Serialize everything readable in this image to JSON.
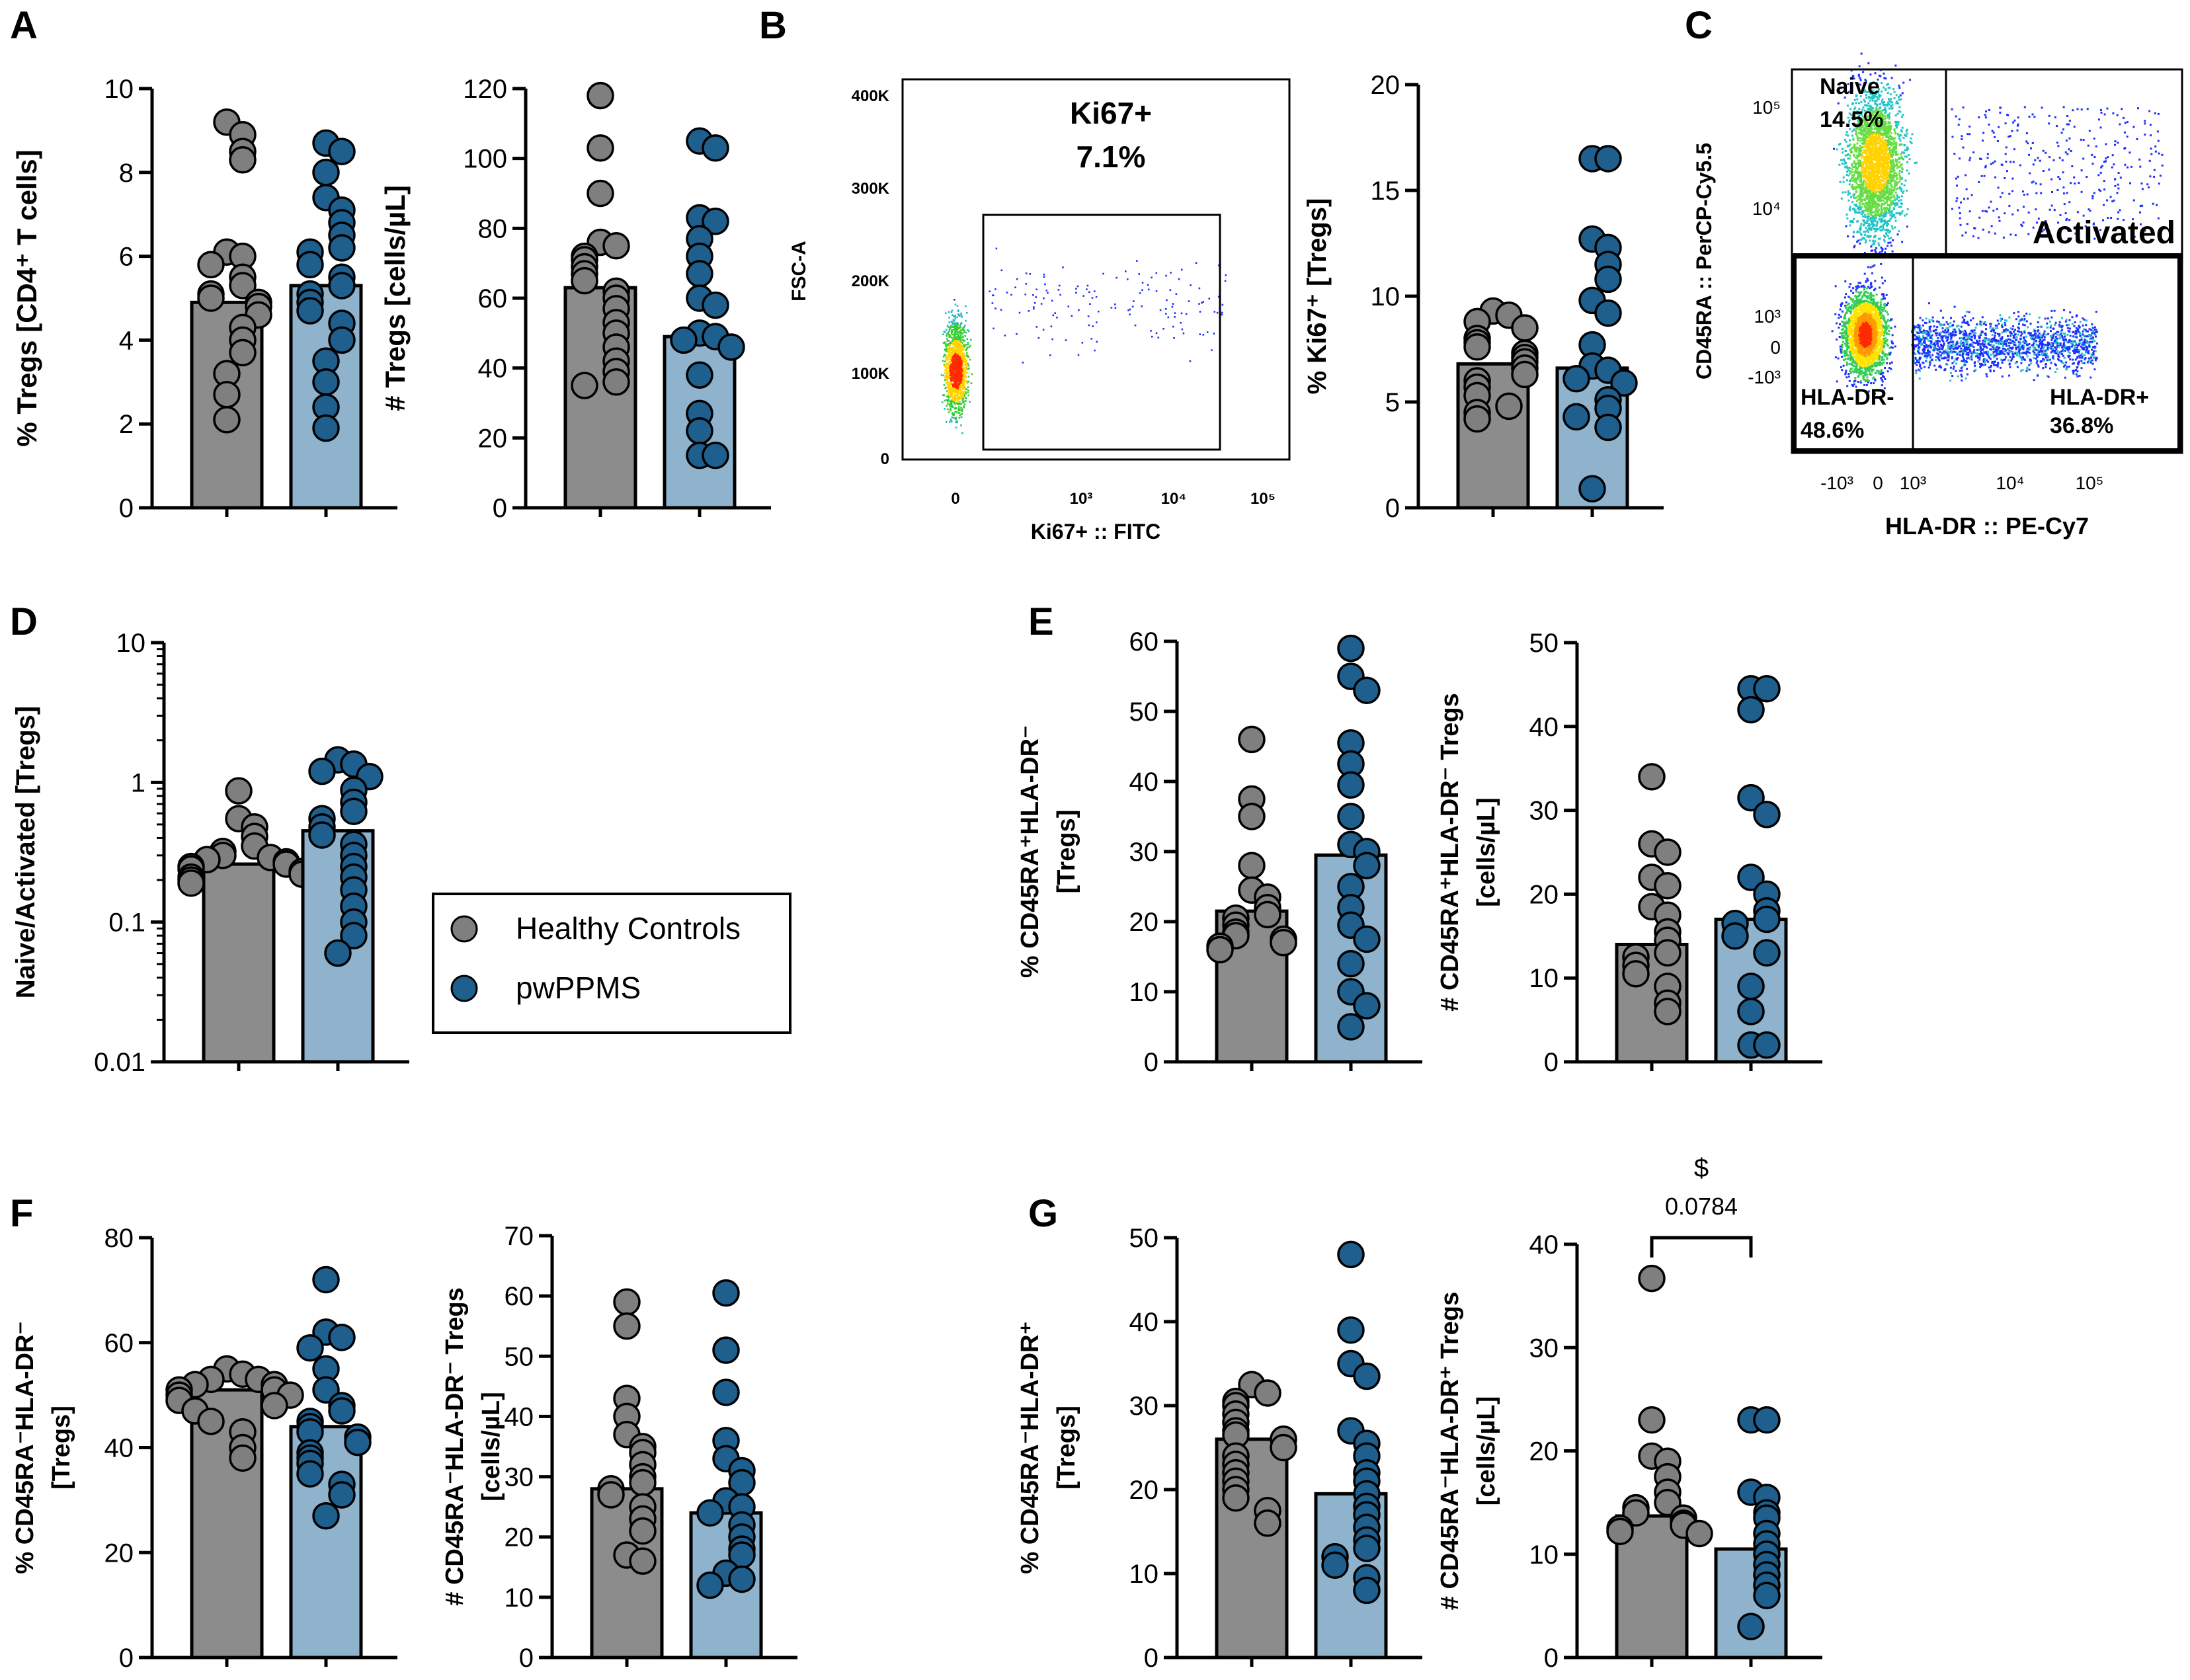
{
  "colors": {
    "hc_bar": "#8c8c8c",
    "ms_bar": "#8fb3cc",
    "hc_dot": "#7f7f7f",
    "ms_dot": "#1e5f8e",
    "stroke": "#000000",
    "gate": "#000000"
  },
  "legend": {
    "items": [
      {
        "label": "Healthy Controls",
        "color": "#7f7f7f"
      },
      {
        "label": "pwPPMS",
        "color": "#1e5f8e"
      }
    ]
  },
  "panel_letters": [
    "A",
    "B",
    "C",
    "D",
    "E",
    "F",
    "G"
  ],
  "chart_data": [
    {
      "id": "A1",
      "panel": "A",
      "type": "bar",
      "ylabel": "% Tregs [CD4⁺ T cells]",
      "ylim": [
        0,
        10
      ],
      "ticks": [
        0,
        2,
        4,
        6,
        8,
        10
      ],
      "series": [
        {
          "name": "Healthy Controls",
          "mean": 4.9,
          "points": [
            9.2,
            8.9,
            8.5,
            8.3,
            6.1,
            6.0,
            5.8,
            5.5,
            5.3,
            5.1,
            5.0,
            4.9,
            4.8,
            4.6,
            4.3,
            4.0,
            3.7,
            3.2,
            2.7,
            2.1
          ]
        },
        {
          "name": "pwPPMS",
          "mean": 5.3,
          "points": [
            8.7,
            8.5,
            8.0,
            7.4,
            7.1,
            6.8,
            6.5,
            6.2,
            6.1,
            5.8,
            5.5,
            5.3,
            5.1,
            4.9,
            4.7,
            4.4,
            4.0,
            3.5,
            3.0,
            2.4,
            1.9
          ]
        }
      ]
    },
    {
      "id": "A2",
      "panel": "A",
      "type": "bar",
      "ylabel": "# Tregs [cells/µL]",
      "ylim": [
        0,
        120
      ],
      "ticks": [
        0,
        20,
        40,
        60,
        80,
        100,
        120
      ],
      "series": [
        {
          "name": "Healthy Controls",
          "mean": 63,
          "points": [
            118,
            103,
            90,
            76,
            75,
            72,
            71,
            69,
            67,
            65,
            62,
            60,
            57,
            53,
            50,
            46,
            42,
            39,
            36,
            35
          ]
        },
        {
          "name": "pwPPMS",
          "mean": 49,
          "points": [
            105,
            103,
            83,
            82,
            77,
            72,
            67,
            60,
            58,
            50,
            49,
            48,
            46,
            38,
            27,
            22,
            15,
            15
          ]
        }
      ]
    },
    {
      "id": "B2",
      "panel": "B",
      "type": "bar",
      "ylabel": "% Ki67⁺ [Tregs]",
      "ylim": [
        0,
        20
      ],
      "ticks": [
        0,
        5,
        10,
        15,
        20
      ],
      "series": [
        {
          "name": "Healthy Controls",
          "mean": 6.8,
          "points": [
            9.3,
            9.1,
            8.8,
            8.5,
            8.0,
            7.8,
            7.6,
            7.3,
            7.1,
            6.9,
            6.6,
            6.3,
            6.0,
            5.7,
            5.3,
            4.8,
            4.5,
            4.2
          ]
        },
        {
          "name": "pwPPMS",
          "mean": 6.6,
          "points": [
            16.5,
            16.5,
            12.7,
            12.3,
            11.5,
            10.8,
            9.8,
            9.2,
            7.7,
            6.7,
            6.5,
            6.1,
            5.9,
            5.1,
            4.7,
            4.3,
            3.8,
            0.9
          ]
        }
      ]
    },
    {
      "id": "D",
      "panel": "D",
      "type": "bar",
      "yscale": "log",
      "ylabel": "Naive/Activated [Tregs]",
      "ylim": [
        0.01,
        10
      ],
      "ticks": [
        0.01,
        0.1,
        1,
        10
      ],
      "tick_labels": [
        "0.01",
        "0.1",
        "1",
        "10"
      ],
      "series": [
        {
          "name": "Healthy Controls",
          "mean": 0.26,
          "points": [
            0.87,
            0.55,
            0.48,
            0.41,
            0.35,
            0.32,
            0.3,
            0.29,
            0.28,
            0.27,
            0.26,
            0.25,
            0.24,
            0.23,
            0.22,
            0.21,
            0.2,
            0.19
          ]
        },
        {
          "name": "pwPPMS",
          "mean": 0.45,
          "points": [
            1.45,
            1.35,
            1.2,
            1.1,
            0.88,
            0.72,
            0.62,
            0.55,
            0.48,
            0.42,
            0.36,
            0.3,
            0.25,
            0.21,
            0.17,
            0.13,
            0.1,
            0.08,
            0.06
          ]
        }
      ]
    },
    {
      "id": "E1",
      "panel": "E",
      "type": "bar",
      "ylabel": "% CD45RA⁺HLA-DR⁻",
      "ylabel2": "[Tregs]",
      "ylim": [
        0,
        60
      ],
      "ticks": [
        0,
        10,
        20,
        30,
        40,
        50,
        60
      ],
      "series": [
        {
          "name": "Healthy Controls",
          "mean": 21.5,
          "points": [
            46,
            37.5,
            35,
            28,
            24.5,
            23.5,
            22,
            21,
            20.5,
            19.5,
            18.5,
            18,
            17.5,
            17,
            16.5,
            16
          ]
        },
        {
          "name": "pwPPMS",
          "mean": 29.5,
          "points": [
            59,
            55,
            53,
            45.5,
            42.5,
            39.5,
            35,
            31,
            30,
            28,
            25,
            22,
            19.5,
            17.5,
            14,
            10,
            8,
            5
          ]
        }
      ]
    },
    {
      "id": "E2",
      "panel": "E",
      "type": "bar",
      "ylabel": "# CD45RA⁺HLA-DR⁻ Tregs",
      "ylabel2": "[cells/µL]",
      "ylim": [
        0,
        50
      ],
      "ticks": [
        0,
        10,
        20,
        30,
        40,
        50
      ],
      "series": [
        {
          "name": "Healthy Controls",
          "mean": 14,
          "points": [
            34,
            26,
            25,
            22,
            21,
            18.5,
            17.5,
            15.5,
            14.5,
            13,
            12.5,
            11.5,
            10.5,
            9,
            7,
            6
          ]
        },
        {
          "name": "pwPPMS",
          "mean": 17,
          "points": [
            44.5,
            44.5,
            42,
            31.5,
            29.5,
            22,
            20,
            18,
            17,
            16.5,
            15,
            13,
            9,
            6,
            2,
            2
          ]
        }
      ]
    },
    {
      "id": "F1",
      "panel": "F",
      "type": "bar",
      "ylabel": "% CD45RA⁻HLA-DR⁻",
      "ylabel2": "[Tregs]",
      "ylim": [
        0,
        80
      ],
      "ticks": [
        0,
        20,
        40,
        60,
        80
      ],
      "series": [
        {
          "name": "Healthy Controls",
          "mean": 51,
          "points": [
            55,
            54,
            53,
            53,
            52,
            52,
            51,
            51,
            50,
            50,
            49,
            48,
            47,
            45,
            43,
            40,
            38
          ]
        },
        {
          "name": "pwPPMS",
          "mean": 44,
          "points": [
            72,
            62,
            61,
            59,
            55,
            51,
            48,
            47,
            45,
            44,
            43,
            42,
            41,
            39,
            38,
            37,
            35,
            33,
            31,
            27
          ]
        }
      ]
    },
    {
      "id": "F2",
      "panel": "F",
      "type": "bar",
      "ylabel": "# CD45RA⁻HLA-DR⁻ Tregs",
      "ylabel2": "[cells/µL]",
      "ylim": [
        0,
        70
      ],
      "ticks": [
        0,
        10,
        20,
        30,
        40,
        50,
        60,
        70
      ],
      "series": [
        {
          "name": "Healthy Controls",
          "mean": 28,
          "points": [
            59,
            55,
            43,
            40,
            37,
            35,
            34,
            32,
            30,
            29,
            28,
            27,
            25,
            23,
            21,
            17,
            16
          ]
        },
        {
          "name": "pwPPMS",
          "mean": 24,
          "points": [
            60.5,
            51,
            44,
            36,
            33,
            31,
            29,
            26,
            25,
            24,
            22,
            20,
            18,
            17,
            14,
            13,
            12
          ]
        }
      ]
    },
    {
      "id": "G1",
      "panel": "G",
      "type": "bar",
      "ylabel": "% CD45RA⁻HLA-DR⁺",
      "ylabel2": "[Tregs]",
      "ylim": [
        0,
        50
      ],
      "ticks": [
        0,
        10,
        20,
        30,
        40,
        50
      ],
      "series": [
        {
          "name": "Healthy Controls",
          "mean": 26,
          "points": [
            32.5,
            31.5,
            30.5,
            30,
            29,
            28,
            27,
            26.5,
            26,
            25,
            24,
            23,
            22,
            21,
            20,
            19,
            17.5,
            16
          ]
        },
        {
          "name": "pwPPMS",
          "mean": 19.5,
          "points": [
            48,
            39,
            35,
            33.5,
            27,
            25.5,
            24,
            22,
            21,
            19.5,
            18,
            17,
            15.5,
            14,
            13,
            12,
            11,
            9.5,
            8
          ]
        }
      ]
    },
    {
      "id": "G2",
      "panel": "G",
      "type": "bar",
      "ylabel": "# CD45RA⁻HLA-DR⁺ Tregs",
      "ylabel2": "[cells/µL]",
      "ylim": [
        0,
        40
      ],
      "ticks": [
        0,
        10,
        20,
        30,
        40
      ],
      "significance": {
        "symbol": "$",
        "p": "0.0784"
      },
      "series": [
        {
          "name": "Healthy Controls",
          "mean": 13.7,
          "points": [
            36.7,
            23,
            19.5,
            19,
            17.5,
            16,
            15,
            14.5,
            14,
            13.5,
            13,
            12.8,
            12.5,
            12.2,
            12
          ]
        },
        {
          "name": "pwPPMS",
          "mean": 10.5,
          "points": [
            23,
            23,
            16,
            15.5,
            14,
            13.5,
            12,
            11,
            10,
            9,
            8,
            7,
            6,
            3
          ]
        }
      ]
    },
    {
      "id": "B1",
      "panel": "B",
      "type": "flow-dot-plot",
      "xlabel": "Ki67+ :: FITC",
      "ylabel": "FSC-A",
      "gate_label": "Ki67+",
      "gate_value": "7.1%",
      "y_ticks": [
        "0",
        "100K",
        "200K",
        "300K",
        "400K"
      ],
      "x_ticks": [
        "0",
        "10³",
        "10⁴",
        "10⁵"
      ]
    },
    {
      "id": "C",
      "panel": "C",
      "type": "flow-dot-plot",
      "xlabel": "HLA-DR :: PE-Cy7",
      "ylabel": "CD45RA :: PerCP-Cy5.5",
      "x_ticks": [
        "-10³",
        "0",
        "10³",
        "10⁴",
        "10⁵"
      ],
      "y_ticks": [
        "-10³",
        "0",
        "10³",
        "10⁴",
        "10⁵"
      ],
      "gates": [
        {
          "name": "Naive",
          "value": "14.5%"
        },
        {
          "name": "Activated",
          "value": ""
        },
        {
          "name": "HLA-DR-",
          "value": "48.6%"
        },
        {
          "name": "HLA-DR+",
          "value": "36.8%"
        }
      ]
    }
  ]
}
